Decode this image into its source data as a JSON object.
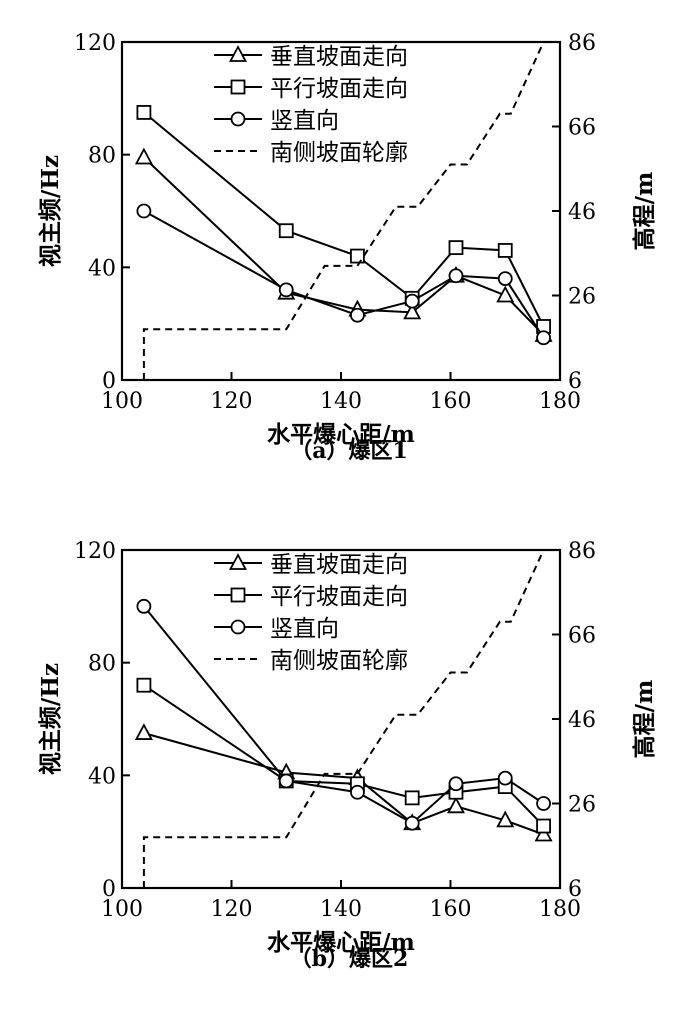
{
  "chart_data": [
    {
      "type": "line",
      "caption": "（a）爆区1",
      "xlabel": "水平爆心距/m",
      "ylabel": "视主频/Hz",
      "y2label": "高程/m",
      "xlim": [
        100,
        180
      ],
      "ylim": [
        0,
        120
      ],
      "y2lim": [
        6,
        86
      ],
      "xticks": [
        "100",
        "120",
        "140",
        "160",
        "180"
      ],
      "yticks": [
        "0",
        "40",
        "80",
        "120"
      ],
      "y2ticks": [
        "6",
        "26",
        "46",
        "66",
        "86"
      ],
      "legend_position": "top-right",
      "series": [
        {
          "name": "垂直坡面走向",
          "marker": "triangle",
          "axis": "left",
          "x": [
            104,
            130,
            143,
            153,
            161,
            170,
            177
          ],
          "y": [
            79,
            31,
            25,
            24,
            37,
            30,
            16
          ]
        },
        {
          "name": "平行坡面走向",
          "marker": "square",
          "axis": "left",
          "x": [
            104,
            130,
            143,
            153,
            161,
            170,
            177
          ],
          "y": [
            95,
            53,
            44,
            29,
            47,
            46,
            19
          ]
        },
        {
          "name": "竖直向",
          "marker": "circle",
          "axis": "left",
          "x": [
            104,
            130,
            143,
            153,
            161,
            170,
            177
          ],
          "y": [
            60,
            32,
            23,
            28,
            37,
            36,
            15
          ]
        },
        {
          "name": "南侧坡面轮廓",
          "marker": "none",
          "style": "dashed",
          "axis": "right",
          "x": [
            104,
            104,
            105,
            130,
            137,
            143,
            150,
            154,
            160,
            163,
            169,
            171,
            177
          ],
          "y": [
            6,
            18,
            18,
            18,
            33,
            33,
            47,
            47,
            57,
            57,
            69,
            69,
            86
          ]
        }
      ]
    },
    {
      "type": "line",
      "caption": "（b）爆区2",
      "xlabel": "水平爆心距/m",
      "ylabel": "视主频/Hz",
      "y2label": "高程/m",
      "xlim": [
        100,
        180
      ],
      "ylim": [
        0,
        120
      ],
      "y2lim": [
        6,
        86
      ],
      "xticks": [
        "100",
        "120",
        "140",
        "160",
        "180"
      ],
      "yticks": [
        "0",
        "40",
        "80",
        "120"
      ],
      "y2ticks": [
        "6",
        "26",
        "46",
        "66",
        "86"
      ],
      "legend_position": "top-right",
      "series": [
        {
          "name": "垂直坡面走向",
          "marker": "triangle",
          "axis": "left",
          "x": [
            104,
            130,
            143,
            153,
            161,
            170,
            177
          ],
          "y": [
            55,
            41,
            39,
            23,
            29,
            24,
            19
          ]
        },
        {
          "name": "平行坡面走向",
          "marker": "square",
          "axis": "left",
          "x": [
            104,
            130,
            143,
            153,
            161,
            170,
            177
          ],
          "y": [
            72,
            38,
            37,
            32,
            34,
            36,
            22
          ]
        },
        {
          "name": "竖直向",
          "marker": "circle",
          "axis": "left",
          "x": [
            104,
            130,
            143,
            153,
            161,
            170,
            177
          ],
          "y": [
            100,
            38,
            34,
            23,
            37,
            39,
            30
          ]
        },
        {
          "name": "南侧坡面轮廓",
          "marker": "none",
          "style": "dashed",
          "axis": "right",
          "x": [
            104,
            104,
            105,
            130,
            137,
            143,
            150,
            154,
            160,
            163,
            169,
            171,
            177
          ],
          "y": [
            6,
            18,
            18,
            18,
            33,
            33,
            47,
            47,
            57,
            57,
            69,
            69,
            86
          ]
        }
      ]
    }
  ]
}
